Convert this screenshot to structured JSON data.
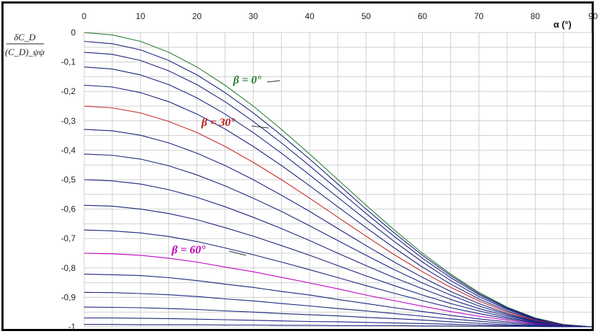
{
  "chart_data": {
    "type": "line",
    "title": "",
    "xlabel": "α (°)",
    "ylabel_numerator": "δC_D",
    "ylabel_denominator": "(C_D)_ψψ",
    "xlim": [
      0,
      90
    ],
    "ylim": [
      -1,
      0
    ],
    "x_ticks": [
      "0",
      "10",
      "20",
      "30",
      "40",
      "50",
      "60",
      "70",
      "80",
      "90"
    ],
    "y_ticks": [
      "0",
      "-0,1",
      "-0,2",
      "-0,3",
      "-0,4",
      "-0,5",
      "-0,6",
      "-0,7",
      "-0,8",
      "-0,9",
      "-1"
    ],
    "grid": true,
    "legend": "none",
    "x": [
      0,
      5,
      10,
      15,
      20,
      25,
      30,
      35,
      40,
      45,
      50,
      55,
      60,
      65,
      70,
      75,
      80,
      85,
      90
    ],
    "series": [
      {
        "name": "β = 0°",
        "color": "#2e7d32",
        "values": [
          0.0,
          -0.008,
          -0.03,
          -0.067,
          -0.117,
          -0.179,
          -0.25,
          -0.329,
          -0.413,
          -0.5,
          -0.587,
          -0.671,
          -0.75,
          -0.821,
          -0.883,
          -0.933,
          -0.97,
          -0.992,
          -1.0
        ]
      },
      {
        "name": "",
        "color": "#1a237e",
        "values": [
          -0.03,
          -0.038,
          -0.059,
          -0.095,
          -0.144,
          -0.204,
          -0.273,
          -0.349,
          -0.43,
          -0.515,
          -0.6,
          -0.681,
          -0.757,
          -0.826,
          -0.887,
          -0.935,
          -0.971,
          -0.993,
          -1.0
        ]
      },
      {
        "name": "",
        "color": "#1a237e",
        "values": [
          -0.067,
          -0.074,
          -0.095,
          -0.13,
          -0.177,
          -0.235,
          -0.302,
          -0.375,
          -0.453,
          -0.534,
          -0.615,
          -0.693,
          -0.767,
          -0.833,
          -0.891,
          -0.938,
          -0.972,
          -0.993,
          -1.0
        ]
      },
      {
        "name": "",
        "color": "#1a237e",
        "values": [
          -0.117,
          -0.124,
          -0.144,
          -0.177,
          -0.222,
          -0.277,
          -0.34,
          -0.41,
          -0.484,
          -0.56,
          -0.636,
          -0.71,
          -0.78,
          -0.843,
          -0.897,
          -0.941,
          -0.974,
          -0.993,
          -1.0
        ]
      },
      {
        "name": "",
        "color": "#1a237e",
        "values": [
          -0.179,
          -0.185,
          -0.204,
          -0.235,
          -0.277,
          -0.328,
          -0.387,
          -0.452,
          -0.521,
          -0.592,
          -0.663,
          -0.732,
          -0.797,
          -0.855,
          -0.905,
          -0.946,
          -0.976,
          -0.994,
          -1.0
        ]
      },
      {
        "name": "β = 30°",
        "color": "#c62828",
        "values": [
          -0.25,
          -0.256,
          -0.273,
          -0.302,
          -0.34,
          -0.387,
          -0.441,
          -0.5,
          -0.563,
          -0.628,
          -0.692,
          -0.755,
          -0.813,
          -0.866,
          -0.912,
          -0.95,
          -0.978,
          -0.994,
          -1.0
        ]
      },
      {
        "name": "",
        "color": "#1a237e",
        "values": [
          -0.329,
          -0.334,
          -0.349,
          -0.375,
          -0.41,
          -0.452,
          -0.5,
          -0.553,
          -0.608,
          -0.666,
          -0.724,
          -0.78,
          -0.832,
          -0.88,
          -0.921,
          -0.955,
          -0.98,
          -0.995,
          -1.0
        ]
      },
      {
        "name": "",
        "color": "#1a237e",
        "values": [
          -0.413,
          -0.417,
          -0.43,
          -0.453,
          -0.484,
          -0.521,
          -0.563,
          -0.608,
          -0.657,
          -0.707,
          -0.757,
          -0.806,
          -0.851,
          -0.892,
          -0.929,
          -0.959,
          -0.982,
          -0.995,
          -1.0
        ]
      },
      {
        "name": "",
        "color": "#1a237e",
        "values": [
          -0.5,
          -0.504,
          -0.515,
          -0.534,
          -0.56,
          -0.592,
          -0.628,
          -0.666,
          -0.707,
          -0.75,
          -0.792,
          -0.833,
          -0.871,
          -0.907,
          -0.938,
          -0.963,
          -0.983,
          -0.996,
          -1.0
        ]
      },
      {
        "name": "",
        "color": "#1a237e",
        "values": [
          -0.587,
          -0.59,
          -0.6,
          -0.615,
          -0.636,
          -0.663,
          -0.692,
          -0.724,
          -0.757,
          -0.792,
          -0.827,
          -0.86,
          -0.892,
          -0.921,
          -0.946,
          -0.968,
          -0.985,
          -0.996,
          -1.0
        ]
      },
      {
        "name": "",
        "color": "#1a237e",
        "values": [
          -0.671,
          -0.674,
          -0.681,
          -0.693,
          -0.71,
          -0.732,
          -0.755,
          -0.78,
          -0.806,
          -0.833,
          -0.86,
          -0.886,
          -0.911,
          -0.935,
          -0.955,
          -0.972,
          -0.987,
          -0.996,
          -1.0
        ]
      },
      {
        "name": "β = 60°",
        "color": "#c000c0",
        "values": [
          -0.75,
          -0.752,
          -0.757,
          -0.767,
          -0.78,
          -0.797,
          -0.813,
          -0.832,
          -0.851,
          -0.871,
          -0.892,
          -0.911,
          -0.93,
          -0.948,
          -0.964,
          -0.977,
          -0.989,
          -0.997,
          -1.0
        ]
      },
      {
        "name": "",
        "color": "#1a237e",
        "values": [
          -0.821,
          -0.823,
          -0.826,
          -0.833,
          -0.843,
          -0.855,
          -0.866,
          -0.88,
          -0.892,
          -0.907,
          -0.921,
          -0.935,
          -0.948,
          -0.961,
          -0.973,
          -0.983,
          -0.991,
          -0.997,
          -1.0
        ]
      },
      {
        "name": "",
        "color": "#1a237e",
        "values": [
          -0.883,
          -0.884,
          -0.887,
          -0.891,
          -0.897,
          -0.905,
          -0.912,
          -0.921,
          -0.929,
          -0.938,
          -0.946,
          -0.955,
          -0.964,
          -0.973,
          -0.981,
          -0.988,
          -0.994,
          -0.998,
          -1.0
        ]
      },
      {
        "name": "",
        "color": "#1a237e",
        "values": [
          -0.933,
          -0.934,
          -0.935,
          -0.938,
          -0.941,
          -0.946,
          -0.95,
          -0.955,
          -0.959,
          -0.963,
          -0.968,
          -0.972,
          -0.977,
          -0.983,
          -0.988,
          -0.993,
          -0.996,
          -0.999,
          -1.0
        ]
      },
      {
        "name": "",
        "color": "#1a237e",
        "values": [
          -0.97,
          -0.97,
          -0.971,
          -0.972,
          -0.974,
          -0.976,
          -0.978,
          -0.98,
          -0.982,
          -0.983,
          -0.985,
          -0.987,
          -0.989,
          -0.991,
          -0.994,
          -0.996,
          -0.998,
          -0.999,
          -1.0
        ]
      },
      {
        "name": "",
        "color": "#1a237e",
        "values": [
          -0.992,
          -0.992,
          -0.993,
          -0.993,
          -0.993,
          -0.994,
          -0.994,
          -0.995,
          -0.995,
          -0.996,
          -0.996,
          -0.996,
          -0.997,
          -0.997,
          -0.998,
          -0.998,
          -0.999,
          -1.0,
          -1.0
        ]
      }
    ],
    "annotations": [
      {
        "text": "β = 0°",
        "color": "#2e7d32"
      },
      {
        "text": "β = 30°",
        "color": "#b71c1c"
      },
      {
        "text": "β = 60°",
        "color": "#c000c0"
      }
    ]
  }
}
